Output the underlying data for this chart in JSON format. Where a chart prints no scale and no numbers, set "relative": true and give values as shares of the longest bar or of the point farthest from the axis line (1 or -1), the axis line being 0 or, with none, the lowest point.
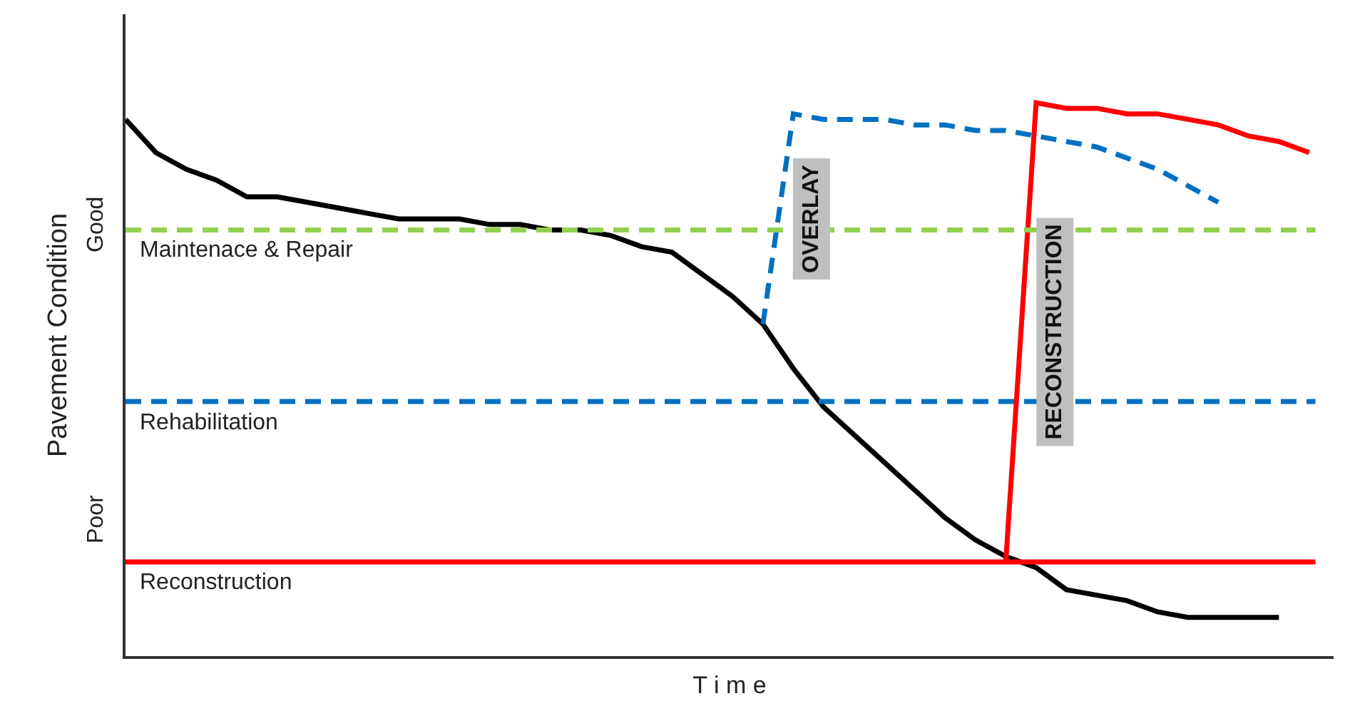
{
  "chart_data": {
    "type": "line",
    "relative": true,
    "xlabel": "T i m e",
    "ylabel": "Pavement Condition",
    "categories": [
      null,
      null,
      null,
      null,
      null,
      null,
      null,
      null,
      null,
      null,
      null,
      null,
      null,
      null,
      null,
      null,
      null,
      null,
      null,
      null,
      null,
      null,
      null,
      null,
      null,
      null,
      null,
      null,
      null,
      null,
      null,
      null,
      null,
      null,
      null,
      null,
      null,
      null,
      null,
      null
    ],
    "marker": "none",
    "series": [
      {
        "color": "#000000",
        "line_style": "solid",
        "values": [
          0.97,
          0.91,
          0.88,
          0.86,
          0.83,
          0.83,
          0.82,
          0.81,
          0.8,
          0.79,
          0.79,
          0.79,
          0.78,
          0.78,
          0.77,
          0.77,
          0.76,
          0.74,
          0.73,
          0.69,
          0.65,
          0.6,
          0.52,
          0.45,
          0.4,
          0.35,
          0.3,
          0.25,
          0.21,
          0.18,
          0.16,
          0.12,
          0.11,
          0.1,
          0.08,
          0.07,
          0.07,
          0.07,
          0.07,
          null
        ]
      },
      {
        "color": "#0070c0",
        "line_style": "dashed",
        "values": [
          null,
          null,
          null,
          null,
          null,
          null,
          null,
          null,
          null,
          null,
          null,
          null,
          null,
          null,
          null,
          null,
          null,
          null,
          null,
          null,
          null,
          0.6,
          0.98,
          0.97,
          0.97,
          0.97,
          0.96,
          0.96,
          0.95,
          0.95,
          0.94,
          0.93,
          0.92,
          0.9,
          0.88,
          0.85,
          0.82,
          null,
          null,
          null
        ]
      },
      {
        "color": "#ff0000",
        "line_style": "solid",
        "values": [
          null,
          null,
          null,
          null,
          null,
          null,
          null,
          null,
          null,
          null,
          null,
          null,
          null,
          null,
          null,
          null,
          null,
          null,
          null,
          null,
          null,
          null,
          null,
          null,
          null,
          null,
          null,
          null,
          null,
          0.17,
          1.0,
          0.99,
          0.99,
          0.98,
          0.98,
          0.97,
          0.96,
          0.94,
          0.93,
          0.91
        ]
      }
    ],
    "ref_lines": [
      {
        "axis": "y",
        "value": 0.77,
        "label": "Maintenace & Repair",
        "color": "#92d050",
        "line_style": "dashed"
      },
      {
        "axis": "y",
        "value": 0.46,
        "label": "Rehabilitation",
        "color": "#0070c0",
        "line_style": "dashed"
      },
      {
        "axis": "y",
        "value": 0.17,
        "label": "Reconstruction",
        "color": "#ff0000",
        "line_style": "solid"
      }
    ],
    "annotations": [
      "Good",
      "Poor",
      "OVERLAY",
      "RECONSTRUCTION"
    ]
  }
}
